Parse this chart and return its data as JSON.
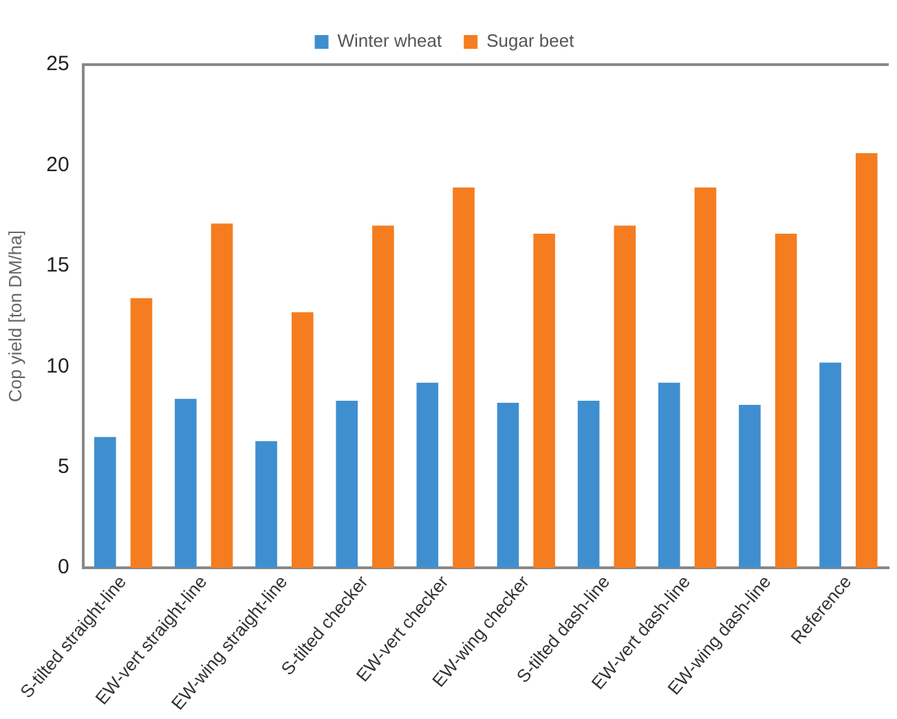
{
  "chart_data": {
    "type": "bar",
    "ylabel": "Cop yield [ton DM/ha]",
    "categories": [
      "S-tilted straight-line",
      "EW-vert straight-line",
      "EW-wing straight-line",
      "S-tilted checker",
      "EW-vert checker",
      "EW-wing checker",
      "S-tilted dash-line",
      "EW-vert dash-line",
      "EW-wing dash-line",
      "Reference"
    ],
    "series": [
      {
        "name": "Winter wheat",
        "color": "#3f8fd0",
        "values": [
          6.5,
          8.4,
          6.3,
          8.3,
          9.2,
          8.2,
          8.3,
          9.2,
          8.1,
          10.2
        ]
      },
      {
        "name": "Sugar beet",
        "color": "#f57d20",
        "values": [
          13.4,
          17.1,
          12.7,
          17.0,
          18.9,
          16.6,
          17.0,
          18.9,
          16.6,
          20.6
        ]
      }
    ],
    "ylim": [
      0,
      25
    ],
    "yticks": [
      0,
      5,
      10,
      15,
      20,
      25
    ],
    "grid": false,
    "legend": "top"
  }
}
